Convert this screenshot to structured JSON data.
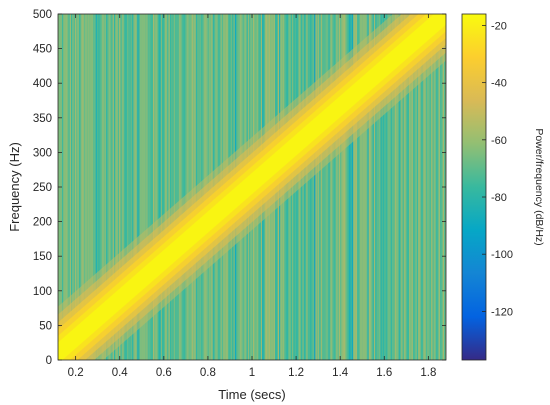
{
  "chart_data": {
    "type": "heatmap",
    "subtype": "spectrogram",
    "xlabel": "Time (secs)",
    "ylabel": "Frequency (Hz)",
    "colorbar_label": "Power/frequency (dB/Hz)",
    "xlim": [
      0.12,
      1.88
    ],
    "ylim": [
      0,
      500
    ],
    "x_ticks": [
      0.2,
      0.4,
      0.6,
      0.8,
      1,
      1.2,
      1.4,
      1.6,
      1.8
    ],
    "x_tick_labels": [
      "0.2",
      "0.4",
      "0.6",
      "0.8",
      "1",
      "1.2",
      "1.4",
      "1.6",
      "1.8"
    ],
    "y_ticks": [
      0,
      50,
      100,
      150,
      200,
      250,
      300,
      350,
      400,
      450,
      500
    ],
    "y_tick_labels": [
      "0",
      "50",
      "100",
      "150",
      "200",
      "250",
      "300",
      "350",
      "400",
      "450",
      "500"
    ],
    "clim": [
      -137,
      -16
    ],
    "colorbar_ticks": [
      -20,
      -40,
      -60,
      -80,
      -100,
      -120
    ],
    "colorbar_tick_labels": [
      "-20",
      "-40",
      "-60",
      "-80",
      "-100",
      "-120"
    ],
    "colormap": "parula",
    "colormap_stops": [
      "#352a87",
      "#0363e1",
      "#1485d4",
      "#06a7c6",
      "#38b99e",
      "#92bf73",
      "#d9ba56",
      "#fcce2e",
      "#f9fb0e"
    ],
    "ridge": {
      "description_line": [
        [
          0.12,
          10
        ],
        [
          1.88,
          500
        ]
      ],
      "peak_level_db": -18,
      "background_level_db": -65
    },
    "grid": false
  }
}
